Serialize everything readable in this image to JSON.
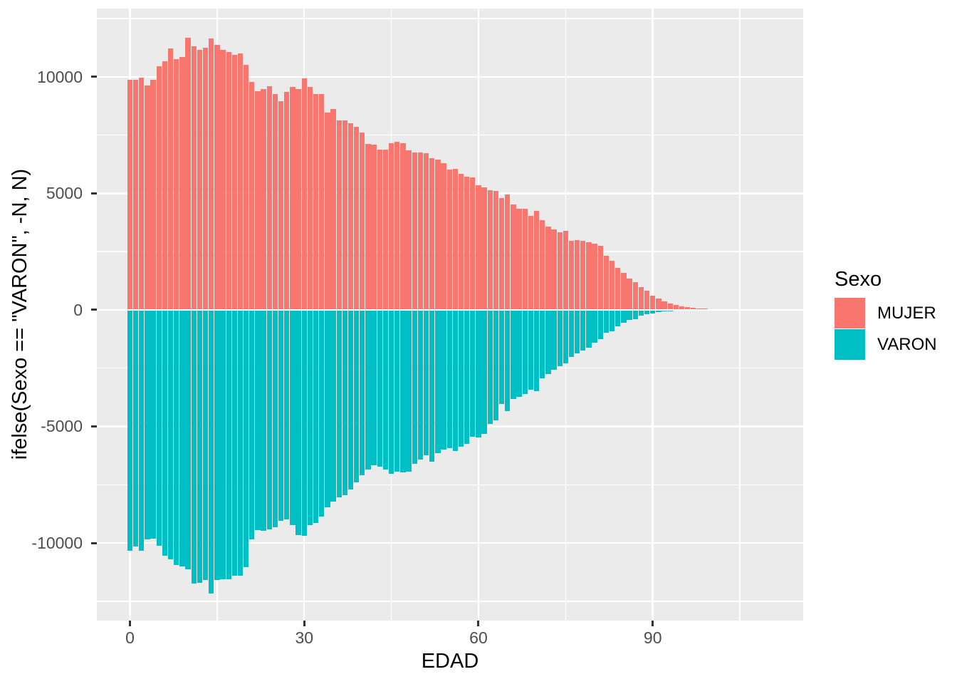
{
  "figure": {
    "background": "#FFFFFF",
    "panel_background": "#EBEBEB",
    "grid_color": "#FFFFFF",
    "tick_color": "#333333",
    "tick_label_color": "#4D4D4D",
    "axis_title_color": "#000000"
  },
  "axes": {
    "x": {
      "title": "EDAD",
      "major_ticks": [
        0,
        30,
        60,
        90
      ],
      "major_tick_labels": [
        "0",
        "30",
        "60",
        "90"
      ],
      "minor_ticks": [
        15,
        45,
        75,
        105
      ],
      "range": [
        -5.7,
        115.9
      ]
    },
    "y": {
      "title": "ifelse(Sexo == \"VARON\", -N, N)",
      "major_ticks": [
        -10000,
        -5000,
        0,
        5000,
        10000
      ],
      "major_tick_labels": [
        "-10000",
        "-5000",
        "0",
        "5000",
        "10000"
      ],
      "minor_ticks": [
        -12500,
        -7500,
        -2500,
        2500,
        7500,
        12500
      ],
      "range": [
        -13333,
        12935
      ]
    }
  },
  "legend": {
    "title": "Sexo",
    "position": "right",
    "entries": [
      {
        "label": "MUJER",
        "color": "#F8766D"
      },
      {
        "label": "VARON",
        "color": "#00BFC4"
      }
    ]
  },
  "chart_data": {
    "type": "bar",
    "title": "",
    "xlabel": "EDAD",
    "ylabel": "ifelse(Sexo == \"VARON\", -N, N)",
    "orientation": "population-pyramid-vertical",
    "grid": true,
    "legend_position": "right",
    "xlim": [
      -5.7,
      115.9
    ],
    "ylim": [
      -13333,
      12935
    ],
    "bar_width_ratio": 0.9,
    "categories": [
      0,
      1,
      2,
      3,
      4,
      5,
      6,
      7,
      8,
      9,
      10,
      11,
      12,
      13,
      14,
      15,
      16,
      17,
      18,
      19,
      20,
      21,
      22,
      23,
      24,
      25,
      26,
      27,
      28,
      29,
      30,
      31,
      32,
      33,
      34,
      35,
      36,
      37,
      38,
      39,
      40,
      41,
      42,
      43,
      44,
      45,
      46,
      47,
      48,
      49,
      50,
      51,
      52,
      53,
      54,
      55,
      56,
      57,
      58,
      59,
      60,
      61,
      62,
      63,
      64,
      65,
      66,
      67,
      68,
      69,
      70,
      71,
      72,
      73,
      74,
      75,
      76,
      77,
      78,
      79,
      80,
      81,
      82,
      83,
      84,
      85,
      86,
      87,
      88,
      89,
      90,
      91,
      92,
      93,
      94,
      95,
      96,
      97,
      98,
      99,
      100,
      101
    ],
    "series": [
      {
        "name": "MUJER",
        "color": "#F8766D",
        "values": [
          9890,
          9890,
          9970,
          9630,
          9890,
          10450,
          10670,
          11220,
          10750,
          10860,
          11670,
          11310,
          11160,
          11240,
          11640,
          11370,
          11160,
          11080,
          10960,
          11010,
          10530,
          9800,
          9400,
          9480,
          9600,
          9280,
          8970,
          9350,
          9560,
          9480,
          9940,
          9560,
          9280,
          9280,
          8480,
          8630,
          8130,
          8130,
          8000,
          7870,
          7610,
          7130,
          7090,
          6880,
          6880,
          7170,
          7210,
          7160,
          6860,
          6750,
          6750,
          6730,
          6510,
          6450,
          6300,
          6010,
          6050,
          5840,
          5730,
          5690,
          5350,
          5250,
          5130,
          5100,
          4800,
          4950,
          4540,
          4350,
          4330,
          4050,
          4250,
          3850,
          3590,
          3450,
          3330,
          3390,
          2980,
          2990,
          2980,
          2910,
          2850,
          2750,
          2320,
          2100,
          1800,
          1580,
          1350,
          1190,
          970,
          820,
          610,
          480,
          370,
          280,
          210,
          160,
          120,
          90,
          65,
          50,
          35,
          25
        ]
      },
      {
        "name": "VARON",
        "color": "#00BFC4",
        "values": [
          -10350,
          -10160,
          -10350,
          -9840,
          -9810,
          -10120,
          -10550,
          -10710,
          -10960,
          -11010,
          -11140,
          -11750,
          -11720,
          -11590,
          -12160,
          -11590,
          -11550,
          -11550,
          -11420,
          -11420,
          -11050,
          -9840,
          -9450,
          -9490,
          -9430,
          -9330,
          -9040,
          -9000,
          -9230,
          -9660,
          -9680,
          -9250,
          -9140,
          -8880,
          -8460,
          -8230,
          -8030,
          -7950,
          -7700,
          -7400,
          -7100,
          -6850,
          -6660,
          -6730,
          -6850,
          -7030,
          -6950,
          -6960,
          -6950,
          -6600,
          -6420,
          -6250,
          -6520,
          -6160,
          -5980,
          -5940,
          -6070,
          -5860,
          -5740,
          -5450,
          -5470,
          -5330,
          -4890,
          -4740,
          -4040,
          -4350,
          -3820,
          -3720,
          -3600,
          -3440,
          -3500,
          -2930,
          -2750,
          -2580,
          -2420,
          -2290,
          -2010,
          -1870,
          -1730,
          -1630,
          -1400,
          -1250,
          -970,
          -920,
          -710,
          -560,
          -430,
          -410,
          -260,
          -190,
          -140,
          -100,
          -70,
          -50,
          -35,
          -25,
          -18,
          -12,
          -8,
          -5,
          -3,
          -2
        ]
      }
    ]
  }
}
